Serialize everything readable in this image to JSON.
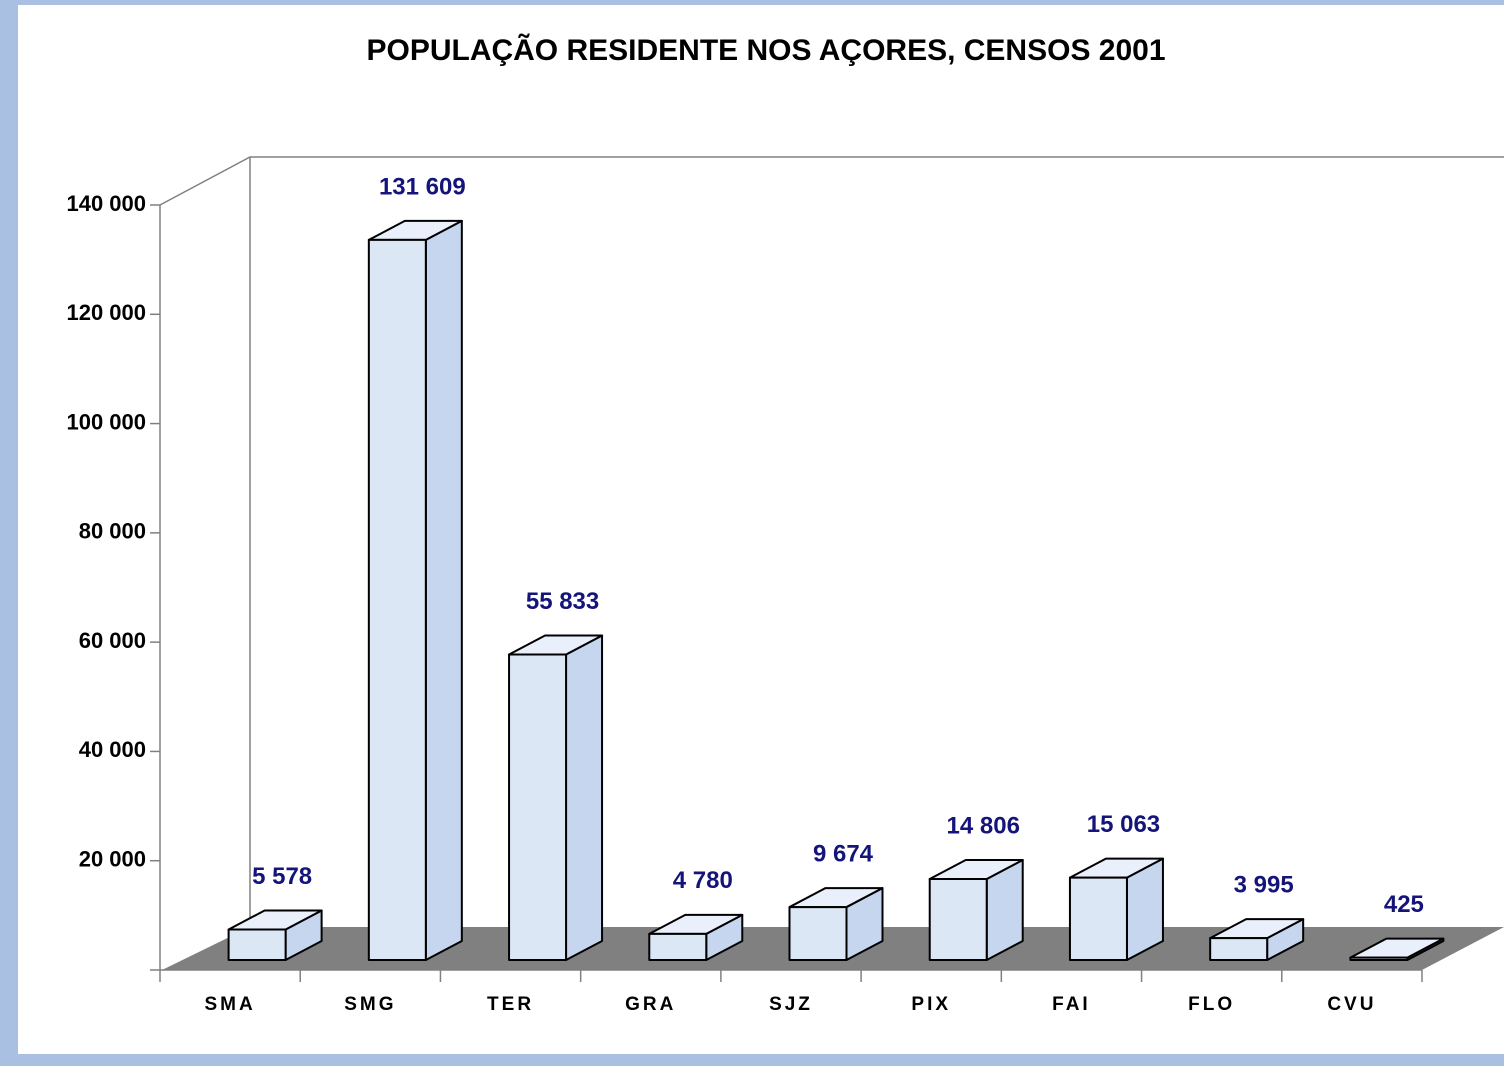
{
  "chart_data": {
    "type": "bar",
    "title": "POPULAÇÃO RESIDENTE NOS AÇORES, CENSOS 2001",
    "categories": [
      "SMA",
      "SMG",
      "TER",
      "GRA",
      "SJZ",
      "PIX",
      "FAI",
      "FLO",
      "CVU"
    ],
    "values": [
      5578,
      131609,
      55833,
      4780,
      9674,
      14806,
      15063,
      3995,
      425
    ],
    "value_labels": [
      "5 578",
      "131 609",
      "55 833",
      "4 780",
      "9 674",
      "14 806",
      "15 063",
      "3 995",
      "425"
    ],
    "color": "#dce7f6",
    "ylim": [
      0,
      140000
    ],
    "yticks": [
      {
        "value": 20000,
        "label": "20 000"
      },
      {
        "value": 40000,
        "label": "40 000"
      },
      {
        "value": 60000,
        "label": "60 000"
      },
      {
        "value": 80000,
        "label": "80 000"
      },
      {
        "value": 100000,
        "label": "100 000"
      },
      {
        "value": 120000,
        "label": "120 000"
      },
      {
        "value": 140000,
        "label": "140 000"
      }
    ]
  }
}
